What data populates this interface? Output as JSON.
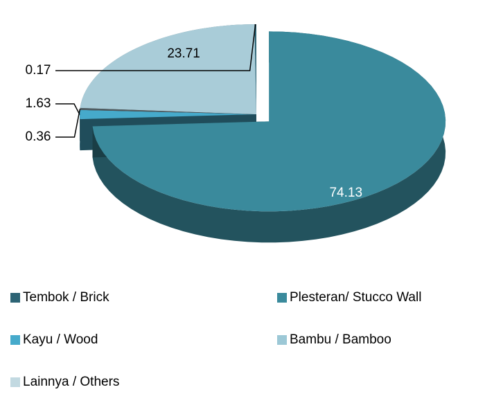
{
  "chart_data": {
    "type": "pie",
    "categories": [
      "Tembok / Brick",
      "Plesteran/ Stucco Wall",
      "Kayu / Wood",
      "Bambu / Bamboo",
      "Lainnya / Others"
    ],
    "values": [
      0.17,
      74.13,
      1.63,
      0.36,
      23.71
    ],
    "colors": [
      "#2d6475",
      "#3a8a9c",
      "#46aacb",
      "#4f5b60",
      "#a9ccd8"
    ],
    "legend_colors": [
      "#2d6475",
      "#3a8a9c",
      "#46aacb",
      "#9cc8d6",
      "#c2d9e1"
    ]
  }
}
